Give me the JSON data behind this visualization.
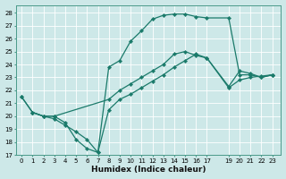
{
  "bg_color": "#cde8e8",
  "grid_color": "#b0d8d8",
  "line_color": "#1a7a6a",
  "marker": "D",
  "markersize": 2.2,
  "linewidth": 0.9,
  "xlabel": "Humidex (Indice chaleur)",
  "xlabel_fontsize": 6.5,
  "tick_fontsize": 5.0,
  "xlim": [
    -0.5,
    23.8
  ],
  "ylim": [
    17,
    28.6
  ],
  "yticks": [
    17,
    18,
    19,
    20,
    21,
    22,
    23,
    24,
    25,
    26,
    27,
    28
  ],
  "xticks": [
    0,
    1,
    2,
    3,
    4,
    5,
    6,
    7,
    8,
    9,
    10,
    11,
    12,
    13,
    14,
    15,
    16,
    17,
    19,
    20,
    21,
    22,
    23
  ],
  "xtick_labels": [
    "0",
    "1",
    "2",
    "3",
    "4",
    "5",
    "6",
    "7",
    "8",
    "9",
    "10",
    "11",
    "12",
    "13",
    "14",
    "15",
    "16",
    "17",
    "19",
    "20",
    "21",
    "22",
    "23"
  ],
  "lines": [
    {
      "x": [
        0,
        1,
        2,
        3,
        4,
        5,
        6,
        7,
        8,
        9,
        10,
        11,
        12,
        13,
        14,
        15,
        16,
        17,
        19,
        20,
        21,
        22,
        23
      ],
      "y": [
        21.5,
        20.3,
        20.0,
        20.0,
        19.5,
        18.2,
        17.5,
        17.2,
        23.8,
        24.3,
        25.8,
        26.6,
        27.5,
        27.8,
        27.9,
        27.9,
        27.7,
        27.6,
        27.6,
        23.2,
        23.2,
        23.0,
        23.2
      ]
    },
    {
      "x": [
        0,
        1,
        2,
        3,
        8,
        9,
        10,
        11,
        12,
        13,
        14,
        15,
        16,
        17,
        19,
        20,
        21,
        22,
        23
      ],
      "y": [
        21.5,
        20.3,
        20.0,
        20.0,
        21.3,
        22.0,
        22.5,
        23.0,
        23.5,
        24.0,
        24.8,
        25.0,
        24.7,
        24.5,
        22.3,
        23.5,
        23.3,
        23.0,
        23.2
      ]
    },
    {
      "x": [
        1,
        2,
        3,
        4,
        5,
        6,
        7,
        8,
        9,
        10,
        11,
        12,
        13,
        14,
        15,
        16,
        17,
        19,
        20,
        21,
        22,
        23
      ],
      "y": [
        20.3,
        20.0,
        19.8,
        19.3,
        18.8,
        18.2,
        17.2,
        20.5,
        21.3,
        21.7,
        22.2,
        22.7,
        23.2,
        23.8,
        24.3,
        24.8,
        24.5,
        22.2,
        22.8,
        23.0,
        23.1,
        23.2
      ]
    }
  ]
}
